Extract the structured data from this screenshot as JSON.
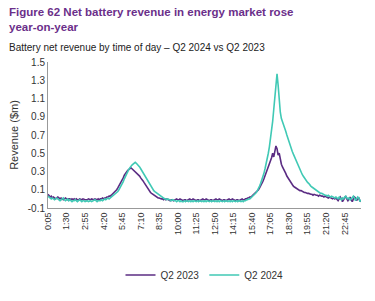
{
  "chart_data": {
    "type": "line",
    "title": "Figure 62 Net battery revenue in energy market rose year-on-year",
    "subtitle": "Battery net revenue by time of day – Q2 2024 vs Q2 2023",
    "y_label": "Revenue ($m)",
    "categories": [
      "0:05",
      null,
      null,
      null,
      null,
      null,
      null,
      null,
      null,
      null,
      null,
      null,
      null,
      null,
      null,
      null,
      null,
      "1:30",
      null,
      null,
      null,
      null,
      null,
      null,
      null,
      null,
      null,
      null,
      null,
      null,
      null,
      null,
      null,
      null,
      "2:55",
      null,
      null,
      null,
      null,
      null,
      null,
      null,
      null,
      null,
      null,
      null,
      null,
      null,
      null,
      null,
      null,
      "4:20",
      null,
      null,
      null,
      null,
      null,
      null,
      null,
      null,
      null,
      null,
      null,
      null,
      null,
      null,
      null,
      null,
      "5:45",
      null,
      null,
      null,
      null,
      null,
      null,
      null,
      null,
      null,
      null,
      null,
      null,
      null,
      null,
      null,
      null,
      "7:10",
      null,
      null,
      null,
      null,
      null,
      null,
      null,
      null,
      null,
      null,
      null,
      null,
      null,
      null,
      null,
      null,
      "8:35",
      null,
      null,
      null,
      null,
      null,
      null,
      null,
      null,
      null,
      null,
      null,
      null,
      null,
      null,
      null,
      null,
      "10:00",
      null,
      null,
      null,
      null,
      null,
      null,
      null,
      null,
      null,
      null,
      null,
      null,
      null,
      null,
      null,
      null,
      "11:25",
      null,
      null,
      null,
      null,
      null,
      null,
      null,
      null,
      null,
      null,
      null,
      null,
      null,
      null,
      null,
      null,
      "12:50",
      null,
      null,
      null,
      null,
      null,
      null,
      null,
      null,
      null,
      null,
      null,
      null,
      null,
      null,
      null,
      null,
      "14:15",
      null,
      null,
      null,
      null,
      null,
      null,
      null,
      null,
      null,
      null,
      null,
      null,
      null,
      null,
      null,
      null,
      "15:40",
      null,
      null,
      null,
      null,
      null,
      null,
      null,
      null,
      null,
      null,
      null,
      null,
      null,
      null,
      null,
      null,
      "17:05",
      null,
      null,
      null,
      null,
      null,
      null,
      null,
      null,
      null,
      null,
      null,
      null,
      null,
      null,
      null,
      null,
      "18:30",
      null,
      null,
      null,
      null,
      null,
      null,
      null,
      null,
      null,
      null,
      null,
      null,
      null,
      null,
      null,
      null,
      "19:55",
      null,
      null,
      null,
      null,
      null,
      null,
      null,
      null,
      null,
      null,
      null,
      null,
      null,
      null,
      null,
      null,
      "21:20",
      null,
      null,
      null,
      null,
      null,
      null,
      null,
      null,
      null,
      null,
      null,
      null,
      null,
      null,
      null,
      null,
      "22:45",
      null,
      null,
      null,
      null,
      null,
      null,
      null,
      null,
      null,
      null,
      null,
      null,
      null,
      null,
      null
    ],
    "series": [
      {
        "name": "Q2 2023",
        "color": "#5b2c83",
        "values": [
          0.05,
          0.04,
          0.02,
          0.03,
          0.01,
          0.02,
          0.01,
          0.0,
          0.01,
          0.02,
          0.01,
          0.0,
          0.01,
          0.0,
          -0.01,
          0.0,
          0.01,
          0.0,
          -0.01,
          0.0,
          0.0,
          -0.01,
          0.0,
          -0.01,
          0.0,
          -0.01,
          0.0,
          -0.01,
          -0.01,
          0.0,
          -0.01,
          -0.01,
          0.0,
          -0.01,
          -0.01,
          -0.01,
          -0.01,
          0.0,
          -0.01,
          -0.01,
          0.0,
          -0.01,
          -0.01,
          0.0,
          -0.01,
          -0.01,
          0.0,
          -0.01,
          0.0,
          0.0,
          0.01,
          0.0,
          0.01,
          0.01,
          0.02,
          0.02,
          0.03,
          0.03,
          0.04,
          0.05,
          0.06,
          0.07,
          0.08,
          0.1,
          0.12,
          0.14,
          0.16,
          0.18,
          0.21,
          0.23,
          0.26,
          0.28,
          0.3,
          0.31,
          0.32,
          0.33,
          0.34,
          0.33,
          0.32,
          0.31,
          0.3,
          0.29,
          0.27,
          0.26,
          0.25,
          0.23,
          0.22,
          0.2,
          0.18,
          0.16,
          0.14,
          0.12,
          0.1,
          0.09,
          0.07,
          0.06,
          0.05,
          0.04,
          0.03,
          0.02,
          0.02,
          0.01,
          0.01,
          0.0,
          0.0,
          0.0,
          -0.01,
          0.0,
          -0.01,
          0.0,
          -0.01,
          -0.01,
          -0.02,
          -0.01,
          -0.01,
          -0.02,
          -0.01,
          -0.01,
          0.0,
          -0.01,
          -0.01,
          0.0,
          -0.01,
          -0.01,
          -0.02,
          -0.01,
          -0.01,
          -0.02,
          -0.01,
          -0.01,
          0.0,
          -0.01,
          -0.01,
          0.0,
          -0.01,
          -0.01,
          -0.02,
          -0.01,
          -0.01,
          -0.02,
          -0.01,
          -0.01,
          0.0,
          -0.01,
          -0.01,
          0.0,
          -0.01,
          -0.01,
          -0.02,
          -0.01,
          -0.01,
          -0.02,
          -0.01,
          -0.01,
          0.0,
          -0.01,
          -0.01,
          0.0,
          -0.01,
          -0.01,
          -0.02,
          -0.01,
          -0.01,
          -0.02,
          -0.01,
          -0.01,
          0.0,
          -0.01,
          -0.01,
          0.0,
          -0.01,
          -0.01,
          -0.02,
          -0.01,
          -0.01,
          -0.02,
          -0.01,
          -0.01,
          0.0,
          -0.01,
          -0.01,
          0.0,
          0.0,
          0.01,
          0.01,
          0.02,
          0.02,
          0.03,
          0.04,
          0.05,
          0.06,
          0.07,
          0.08,
          0.1,
          0.12,
          0.14,
          0.16,
          0.19,
          0.22,
          0.25,
          0.28,
          0.31,
          0.34,
          0.37,
          0.4,
          0.45,
          0.5,
          0.46,
          0.52,
          0.58,
          0.55,
          0.48,
          0.5,
          0.43,
          0.38,
          0.35,
          0.33,
          0.3,
          0.28,
          0.25,
          0.23,
          0.21,
          0.19,
          0.17,
          0.15,
          0.14,
          0.13,
          0.12,
          0.11,
          0.1,
          0.1,
          0.09,
          0.09,
          0.08,
          0.08,
          0.07,
          0.07,
          0.06,
          0.06,
          0.06,
          0.05,
          0.05,
          0.05,
          0.04,
          0.05,
          0.04,
          0.04,
          0.04,
          0.03,
          0.04,
          0.03,
          0.03,
          0.03,
          0.02,
          0.03,
          0.02,
          0.02,
          0.01,
          0.02,
          0.01,
          0.01,
          0.0,
          0.01,
          0.0,
          0.01,
          0.0,
          -0.02,
          0.0,
          0.02,
          0.0,
          -0.03,
          -0.01,
          0.01,
          0.03,
          0.0,
          -0.02,
          0.0,
          0.02,
          -0.01,
          -0.03,
          0.0,
          0.02,
          0.01,
          -0.02,
          0.0,
          0.01,
          -0.02,
          -0.03
        ]
      },
      {
        "name": "Q2 2024",
        "color": "#40c9b5",
        "values": [
          0.03,
          0.02,
          0.01,
          0.0,
          0.01,
          0.0,
          -0.01,
          0.0,
          0.01,
          0.0,
          -0.01,
          -0.02,
          -0.01,
          0.0,
          0.01,
          -0.01,
          -0.02,
          -0.01,
          0.0,
          -0.02,
          -0.01,
          -0.02,
          -0.03,
          -0.02,
          -0.02,
          -0.01,
          -0.02,
          -0.03,
          -0.02,
          -0.01,
          -0.02,
          -0.03,
          -0.02,
          -0.02,
          -0.03,
          -0.02,
          -0.02,
          -0.03,
          -0.02,
          -0.02,
          -0.03,
          -0.02,
          -0.02,
          -0.01,
          -0.02,
          -0.03,
          -0.02,
          -0.02,
          -0.02,
          -0.01,
          -0.02,
          -0.01,
          0.0,
          -0.01,
          0.0,
          0.01,
          0.0,
          0.01,
          0.02,
          0.02,
          0.03,
          0.04,
          0.05,
          0.06,
          0.08,
          0.1,
          0.12,
          0.14,
          0.17,
          0.19,
          0.22,
          0.25,
          0.27,
          0.3,
          0.32,
          0.34,
          0.36,
          0.37,
          0.38,
          0.39,
          0.4,
          0.39,
          0.38,
          0.37,
          0.35,
          0.33,
          0.31,
          0.29,
          0.27,
          0.25,
          0.22,
          0.2,
          0.18,
          0.16,
          0.14,
          0.12,
          0.1,
          0.09,
          0.08,
          0.07,
          0.06,
          0.05,
          0.04,
          0.03,
          0.02,
          0.02,
          0.01,
          0.0,
          0.0,
          -0.01,
          0.0,
          -0.01,
          -0.01,
          -0.02,
          -0.01,
          -0.02,
          -0.02,
          -0.02,
          -0.03,
          -0.02,
          -0.02,
          -0.03,
          -0.02,
          -0.03,
          -0.03,
          -0.02,
          -0.03,
          -0.02,
          -0.03,
          -0.03,
          -0.02,
          -0.03,
          -0.02,
          -0.03,
          -0.02,
          -0.03,
          -0.03,
          -0.02,
          -0.03,
          -0.02,
          -0.03,
          -0.03,
          -0.02,
          -0.03,
          -0.02,
          -0.03,
          -0.02,
          -0.03,
          -0.03,
          -0.02,
          -0.03,
          -0.02,
          -0.03,
          -0.03,
          -0.02,
          -0.03,
          -0.02,
          -0.03,
          -0.02,
          -0.03,
          -0.03,
          -0.02,
          -0.03,
          -0.02,
          -0.03,
          -0.03,
          -0.02,
          -0.03,
          -0.02,
          -0.03,
          -0.02,
          -0.03,
          -0.03,
          -0.02,
          -0.03,
          -0.02,
          -0.03,
          -0.03,
          -0.02,
          -0.03,
          -0.02,
          -0.02,
          -0.01,
          -0.01,
          0.0,
          0.0,
          0.01,
          0.02,
          0.03,
          0.04,
          0.05,
          0.07,
          0.09,
          0.11,
          0.14,
          0.17,
          0.2,
          0.24,
          0.28,
          0.33,
          0.38,
          0.44,
          0.5,
          0.57,
          0.65,
          0.75,
          0.85,
          0.98,
          1.12,
          1.28,
          1.37,
          1.25,
          1.05,
          0.95,
          0.88,
          0.85,
          0.82,
          0.78,
          0.74,
          0.7,
          0.66,
          0.62,
          0.58,
          0.55,
          0.52,
          0.49,
          0.46,
          0.43,
          0.4,
          0.37,
          0.34,
          0.31,
          0.29,
          0.27,
          0.25,
          0.23,
          0.21,
          0.2,
          0.18,
          0.17,
          0.15,
          0.14,
          0.13,
          0.12,
          0.11,
          0.1,
          0.09,
          0.08,
          0.08,
          0.07,
          0.06,
          0.06,
          0.05,
          0.05,
          0.04,
          0.04,
          0.03,
          0.04,
          0.03,
          0.02,
          0.03,
          0.02,
          0.02,
          0.01,
          0.02,
          0.01,
          0.0,
          0.02,
          0.01,
          -0.01,
          0.01,
          0.0,
          0.02,
          0.03,
          0.01,
          0.0,
          0.01,
          -0.01,
          0.0,
          0.02,
          0.03,
          0.01,
          -0.02,
          0.0,
          0.02,
          0.01,
          -0.03,
          -0.01
        ]
      }
    ],
    "ylim": [
      -0.1,
      1.5
    ],
    "yticks": [
      -0.1,
      0.1,
      0.3,
      0.5,
      0.7,
      0.9,
      1.1,
      1.3,
      1.5
    ],
    "grid": false,
    "legend": "bottom"
  }
}
